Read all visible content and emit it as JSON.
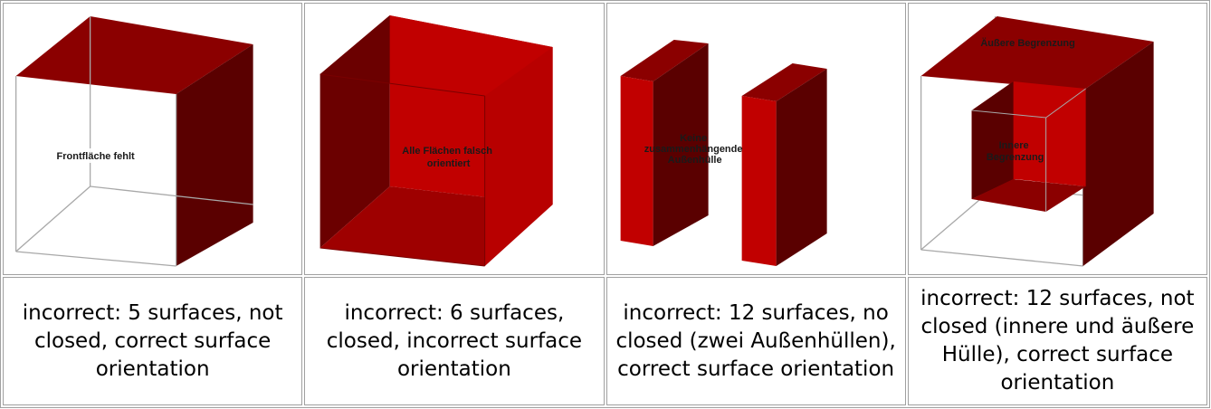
{
  "panels": [
    {
      "label": "Frontfläche fehlt",
      "caption": "incorrect: 5 surfaces, not closed, correct surface orientation"
    },
    {
      "label": "Alle Flächen falsch orientiert",
      "caption": "incorrect: 6 surfaces, closed, incorrect surface orientation"
    },
    {
      "label": "Keine zusammenhängende Außenhülle",
      "caption": "incorrect: 12 surfaces, no closed (zwei Außenhüllen), correct surface orientation"
    },
    {
      "label_outer": "Äußere Begrenzung",
      "label_inner": "Innere Begrenzung",
      "caption": "incorrect: 12 surfaces, not closed (innere und äußere Hülle), correct surface orientation"
    }
  ],
  "colors": {
    "face_bright": "#c10000",
    "face_mid": "#9e0000",
    "face_dark": "#5a0000",
    "face_top": "#8b0000",
    "edge": "#a8a8a8"
  }
}
